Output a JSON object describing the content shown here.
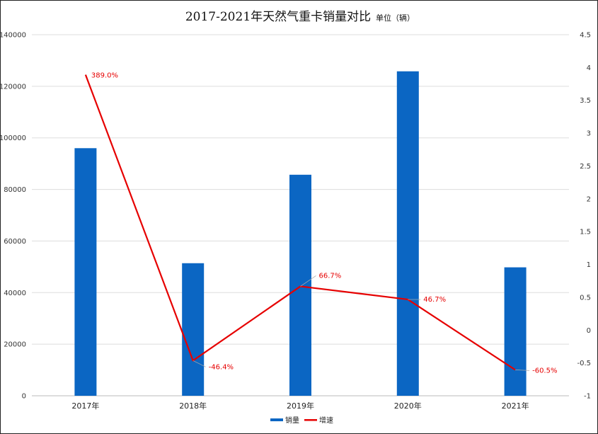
{
  "chart_data": {
    "type": "bar",
    "title": "2017-2021年天然气重卡销量对比",
    "subtitle": "单位（辆）",
    "categories": [
      "2017年",
      "2018年",
      "2019年",
      "2020年",
      "2021年"
    ],
    "series": [
      {
        "name": "销量",
        "type": "bar",
        "axis": "left",
        "color": "#0b66c3",
        "values": [
          96000,
          51400,
          85700,
          125800,
          49800
        ]
      },
      {
        "name": "增速",
        "type": "line",
        "axis": "right",
        "color": "#e60000",
        "values": [
          3.89,
          -0.464,
          0.667,
          0.467,
          -0.605
        ],
        "labels": [
          "389.0%",
          "-46.4%",
          "66.7%",
          "46.7%",
          "-60.5%"
        ]
      }
    ],
    "y_left": {
      "min": 0,
      "max": 140000,
      "ticks": [
        "0",
        "20000",
        "40000",
        "60000",
        "80000",
        "100000",
        "120000",
        "140000"
      ]
    },
    "y_right": {
      "min": -1,
      "max": 4.5,
      "ticks": [
        "-1",
        "-0.5",
        "0",
        "0.5",
        "1",
        "1.5",
        "2",
        "2.5",
        "3",
        "3.5",
        "4",
        "4.5"
      ]
    },
    "grid": true,
    "legend_position": "bottom"
  }
}
